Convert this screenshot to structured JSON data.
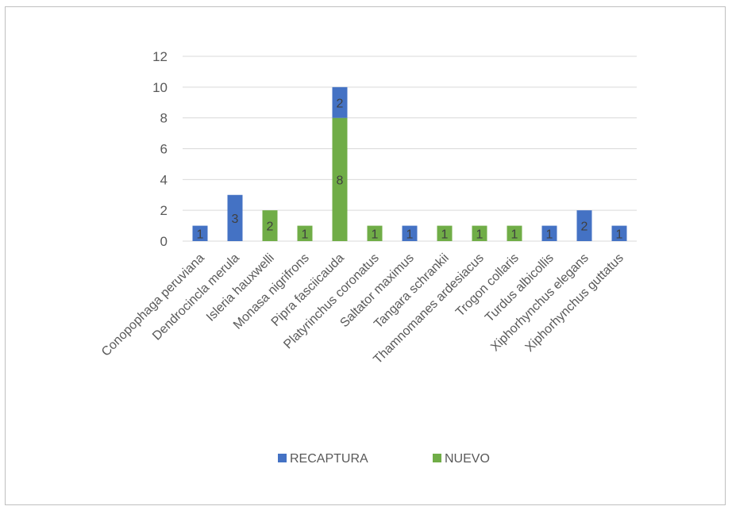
{
  "chart_data": {
    "type": "bar",
    "stacked": true,
    "title": "",
    "xlabel": "",
    "ylabel": "",
    "ylim": [
      0,
      12
    ],
    "yticks": [
      0,
      2,
      4,
      6,
      8,
      10,
      12
    ],
    "grid": true,
    "legend_position": "bottom",
    "categories": [
      "Conopophaga peruviana",
      "Dendrocincla merula",
      "Isleria hauxwelli",
      "Monasa nigrifrons",
      "Pipra fasciicauda",
      "Platyrinchus coronatus",
      "Saltator maximus",
      "Tangara schrankii",
      "Thamnomanes ardesiacus",
      "Trogon collaris",
      "Turdus albicollis",
      "Xiphorhynchus elegans",
      "Xiphorhynchus guttatus"
    ],
    "series": [
      {
        "name": "RECAPTURA",
        "color": "#4472c4",
        "values": [
          1,
          3,
          0,
          0,
          2,
          0,
          1,
          0,
          0,
          0,
          1,
          2,
          1
        ]
      },
      {
        "name": "NUEVO",
        "color": "#70ad47",
        "values": [
          0,
          0,
          2,
          1,
          8,
          1,
          0,
          1,
          1,
          1,
          0,
          0,
          0
        ]
      }
    ],
    "stack_order": [
      "NUEVO",
      "RECAPTURA"
    ]
  }
}
